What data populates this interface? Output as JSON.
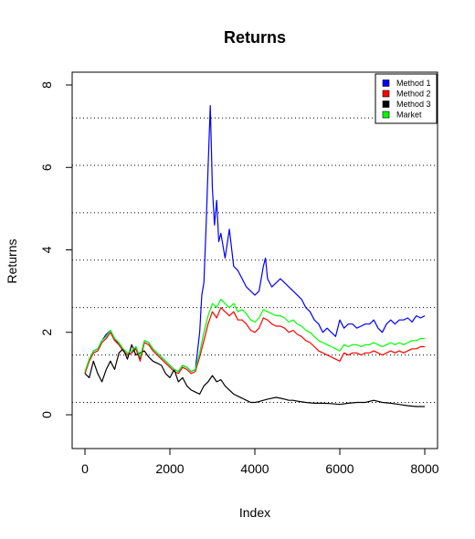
{
  "chart_data": {
    "type": "line",
    "title": "Returns",
    "xlabel": "Index",
    "ylabel": "Returns",
    "xlim": [
      0,
      8000
    ],
    "ylim": [
      -0.8,
      8.2
    ],
    "xticks": [
      0,
      2000,
      4000,
      6000,
      8000
    ],
    "yticks": [
      0,
      2,
      4,
      6,
      8
    ],
    "hlines": [
      0.3,
      1.45,
      2.6,
      3.75,
      4.9,
      6.05,
      7.2
    ],
    "legend_position": "top-right",
    "series": [
      {
        "name": "Method 1",
        "color": "#0000ff",
        "x": [
          0,
          100,
          200,
          300,
          400,
          500,
          600,
          700,
          800,
          900,
          1000,
          1100,
          1200,
          1300,
          1400,
          1500,
          1600,
          1700,
          1800,
          1900,
          2000,
          2100,
          2200,
          2300,
          2400,
          2500,
          2600,
          2700,
          2750,
          2800,
          2850,
          2900,
          2950,
          3000,
          3050,
          3100,
          3150,
          3200,
          3300,
          3400,
          3500,
          3600,
          3700,
          3800,
          3900,
          4000,
          4100,
          4200,
          4250,
          4300,
          4400,
          4500,
          4600,
          4700,
          4800,
          4900,
          5000,
          5100,
          5200,
          5300,
          5400,
          5500,
          5600,
          5700,
          5800,
          5900,
          6000,
          6100,
          6200,
          6300,
          6400,
          6500,
          6600,
          6700,
          6800,
          6900,
          7000,
          7100,
          7200,
          7300,
          7400,
          7500,
          7600,
          7700,
          7800,
          7900,
          8000
        ],
        "y": [
          1.0,
          1.35,
          1.55,
          1.6,
          1.8,
          1.95,
          2.05,
          1.85,
          1.7,
          1.55,
          1.45,
          1.5,
          1.65,
          1.35,
          1.8,
          1.75,
          1.6,
          1.5,
          1.4,
          1.3,
          1.2,
          1.1,
          1.05,
          1.2,
          1.15,
          1.05,
          1.1,
          2.0,
          2.9,
          3.2,
          4.5,
          6.0,
          7.5,
          5.5,
          4.6,
          5.2,
          4.2,
          4.4,
          3.8,
          4.5,
          3.6,
          3.5,
          3.3,
          3.1,
          3.0,
          2.9,
          3.0,
          3.6,
          3.8,
          3.3,
          3.1,
          3.2,
          3.3,
          3.2,
          3.1,
          3.0,
          2.9,
          2.8,
          2.6,
          2.5,
          2.3,
          2.2,
          2.0,
          2.1,
          2.0,
          1.9,
          2.3,
          2.1,
          2.2,
          2.2,
          2.1,
          2.15,
          2.2,
          2.2,
          2.3,
          2.1,
          2.0,
          2.2,
          2.3,
          2.2,
          2.3,
          2.3,
          2.35,
          2.25,
          2.4,
          2.35,
          2.4
        ]
      },
      {
        "name": "Method 2",
        "color": "#ff0000",
        "x": [
          0,
          100,
          200,
          300,
          400,
          500,
          600,
          700,
          800,
          900,
          1000,
          1100,
          1200,
          1300,
          1400,
          1500,
          1600,
          1700,
          1800,
          1900,
          2000,
          2100,
          2200,
          2300,
          2400,
          2500,
          2600,
          2700,
          2800,
          2900,
          3000,
          3100,
          3200,
          3300,
          3400,
          3500,
          3600,
          3700,
          3800,
          3900,
          4000,
          4100,
          4200,
          4300,
          4400,
          4500,
          4600,
          4700,
          4800,
          4900,
          5000,
          5100,
          5200,
          5300,
          5400,
          5500,
          5600,
          5700,
          5800,
          5900,
          6000,
          6100,
          6200,
          6300,
          6400,
          6500,
          6600,
          6700,
          6800,
          6900,
          7000,
          7100,
          7200,
          7300,
          7400,
          7500,
          7600,
          7700,
          7800,
          7900,
          8000
        ],
        "y": [
          1.0,
          1.3,
          1.5,
          1.55,
          1.75,
          1.85,
          2.0,
          1.8,
          1.7,
          1.55,
          1.45,
          1.5,
          1.6,
          1.3,
          1.75,
          1.7,
          1.55,
          1.45,
          1.35,
          1.25,
          1.15,
          1.05,
          1.0,
          1.15,
          1.1,
          1.0,
          1.05,
          1.4,
          1.8,
          2.2,
          2.5,
          2.35,
          2.6,
          2.5,
          2.4,
          2.5,
          2.3,
          2.3,
          2.2,
          2.05,
          2.0,
          2.1,
          2.35,
          2.3,
          2.2,
          2.15,
          2.15,
          2.1,
          2.0,
          2.05,
          1.95,
          1.9,
          1.8,
          1.75,
          1.65,
          1.55,
          1.5,
          1.45,
          1.4,
          1.35,
          1.3,
          1.5,
          1.45,
          1.5,
          1.5,
          1.45,
          1.5,
          1.5,
          1.55,
          1.5,
          1.45,
          1.5,
          1.55,
          1.5,
          1.55,
          1.5,
          1.55,
          1.6,
          1.6,
          1.65,
          1.65
        ]
      },
      {
        "name": "Method 3",
        "color": "#000000",
        "x": [
          0,
          100,
          200,
          300,
          400,
          500,
          600,
          700,
          800,
          900,
          1000,
          1100,
          1200,
          1300,
          1400,
          1500,
          1600,
          1700,
          1800,
          1900,
          2000,
          2100,
          2200,
          2300,
          2400,
          2500,
          2600,
          2700,
          2800,
          2900,
          3000,
          3100,
          3200,
          3300,
          3400,
          3500,
          3600,
          3700,
          3800,
          3900,
          4000,
          4100,
          4200,
          4300,
          4400,
          4500,
          4600,
          4700,
          4800,
          4900,
          5000,
          5200,
          5400,
          5600,
          5800,
          6000,
          6200,
          6400,
          6600,
          6800,
          7000,
          7200,
          7400,
          7600,
          7800,
          8000
        ],
        "y": [
          1.0,
          0.9,
          1.3,
          1.0,
          0.8,
          1.1,
          1.3,
          1.1,
          1.5,
          1.6,
          1.35,
          1.7,
          1.45,
          1.5,
          1.55,
          1.4,
          1.3,
          1.25,
          1.2,
          1.0,
          0.9,
          1.1,
          0.8,
          0.9,
          0.7,
          0.6,
          0.55,
          0.5,
          0.7,
          0.8,
          0.95,
          0.8,
          0.85,
          0.7,
          0.6,
          0.5,
          0.45,
          0.4,
          0.35,
          0.3,
          0.3,
          0.32,
          0.35,
          0.38,
          0.4,
          0.42,
          0.4,
          0.38,
          0.35,
          0.35,
          0.33,
          0.3,
          0.28,
          0.28,
          0.27,
          0.25,
          0.28,
          0.3,
          0.3,
          0.35,
          0.3,
          0.28,
          0.25,
          0.22,
          0.2,
          0.2
        ]
      },
      {
        "name": "Market",
        "color": "#00ff00",
        "x": [
          0,
          100,
          200,
          300,
          400,
          500,
          600,
          700,
          800,
          900,
          1000,
          1100,
          1200,
          1300,
          1400,
          1500,
          1600,
          1700,
          1800,
          1900,
          2000,
          2100,
          2200,
          2300,
          2400,
          2500,
          2600,
          2700,
          2800,
          2900,
          3000,
          3100,
          3200,
          3300,
          3400,
          3500,
          3600,
          3700,
          3800,
          3900,
          4000,
          4100,
          4200,
          4300,
          4400,
          4500,
          4600,
          4700,
          4800,
          4900,
          5000,
          5100,
          5200,
          5300,
          5400,
          5500,
          5600,
          5700,
          5800,
          5900,
          6000,
          6100,
          6200,
          6300,
          6400,
          6500,
          6600,
          6700,
          6800,
          6900,
          7000,
          7100,
          7200,
          7300,
          7400,
          7500,
          7600,
          7700,
          7800,
          7900,
          8000
        ],
        "y": [
          1.05,
          1.35,
          1.55,
          1.6,
          1.8,
          1.9,
          2.05,
          1.85,
          1.75,
          1.6,
          1.5,
          1.55,
          1.65,
          1.4,
          1.8,
          1.75,
          1.6,
          1.5,
          1.4,
          1.3,
          1.2,
          1.1,
          1.05,
          1.2,
          1.15,
          1.05,
          1.1,
          1.5,
          2.0,
          2.4,
          2.7,
          2.6,
          2.8,
          2.7,
          2.6,
          2.7,
          2.5,
          2.55,
          2.45,
          2.3,
          2.25,
          2.35,
          2.55,
          2.5,
          2.45,
          2.4,
          2.4,
          2.35,
          2.25,
          2.3,
          2.2,
          2.15,
          2.05,
          2.0,
          1.9,
          1.8,
          1.75,
          1.7,
          1.65,
          1.6,
          1.55,
          1.7,
          1.65,
          1.7,
          1.7,
          1.65,
          1.7,
          1.7,
          1.75,
          1.7,
          1.65,
          1.7,
          1.75,
          1.7,
          1.75,
          1.7,
          1.75,
          1.8,
          1.8,
          1.85,
          1.85
        ]
      }
    ]
  }
}
